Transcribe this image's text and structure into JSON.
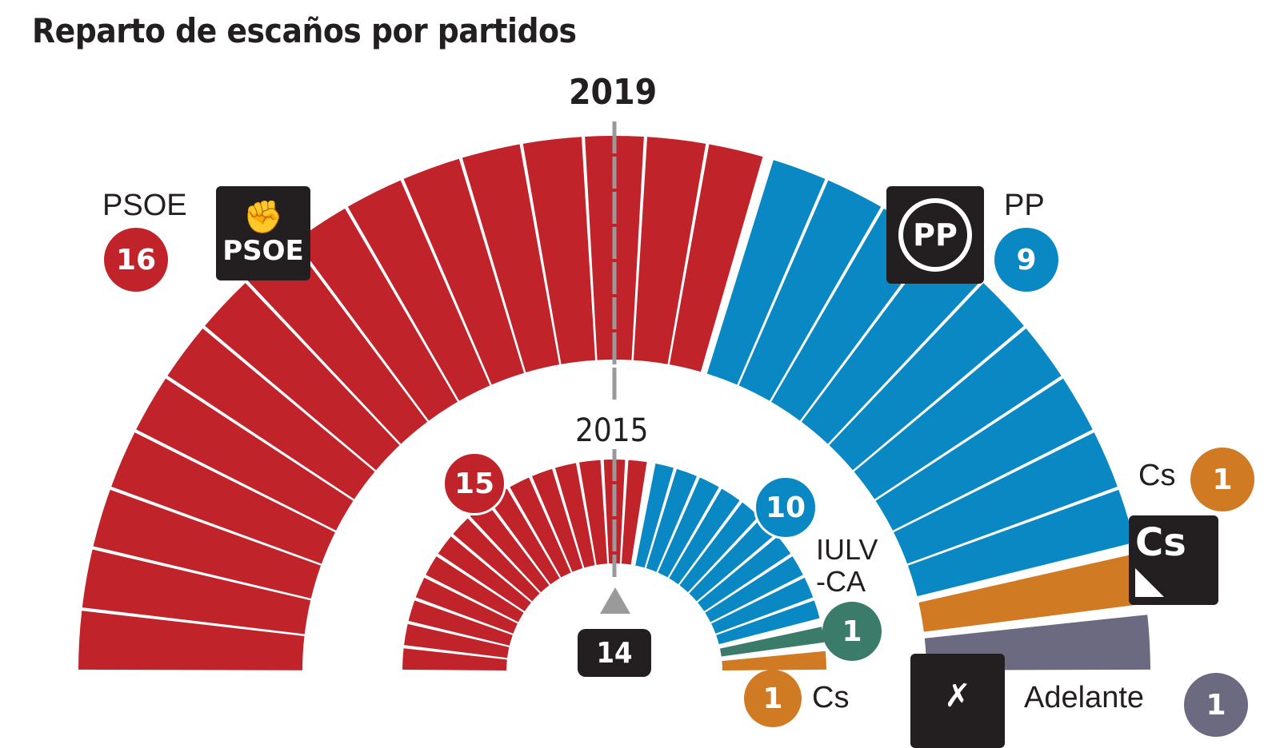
{
  "title": "Reparto de escaños por partidos",
  "colors": {
    "PSOE": "#c1232b",
    "PP": "#0a88c4",
    "Cs": "#d07a24",
    "Adelante": "#6b6a80",
    "IULV-CA": "#3b7b6a",
    "dark": "#231f20",
    "marker": "#9a9a9a"
  },
  "chart_data": [
    {
      "type": "parliament",
      "title": "2019",
      "total_seats": 27,
      "series": [
        {
          "name": "PSOE",
          "values": [
            16
          ]
        },
        {
          "name": "PP",
          "values": [
            9
          ]
        },
        {
          "name": "Cs",
          "values": [
            1
          ]
        },
        {
          "name": "Adelante",
          "values": [
            1
          ]
        }
      ]
    },
    {
      "type": "parliament",
      "title": "2015",
      "total_seats": 27,
      "series": [
        {
          "name": "PSOE",
          "values": [
            15
          ]
        },
        {
          "name": "PP",
          "values": [
            10
          ]
        },
        {
          "name": "IULV-CA",
          "values": [
            1
          ]
        },
        {
          "name": "Cs",
          "values": [
            1
          ]
        }
      ]
    }
  ],
  "majority": "14",
  "labels": {
    "psoe_name": "PSOE",
    "psoe_2019": "16",
    "psoe_2015": "15",
    "psoe_logo": "PSOE",
    "pp_name": "PP",
    "pp_2019": "9",
    "pp_2015": "10",
    "pp_logo": "PP",
    "cs_name_2019": "Cs",
    "cs_2019": "1",
    "cs_logo": "Cs",
    "iulv_line1": "IULV",
    "iulv_line2": "-CA",
    "iulv_2015": "1",
    "cs_name_2015": "Cs",
    "cs_2015": "1",
    "adelante_name": "Adelante",
    "adelante_2019": "1"
  }
}
